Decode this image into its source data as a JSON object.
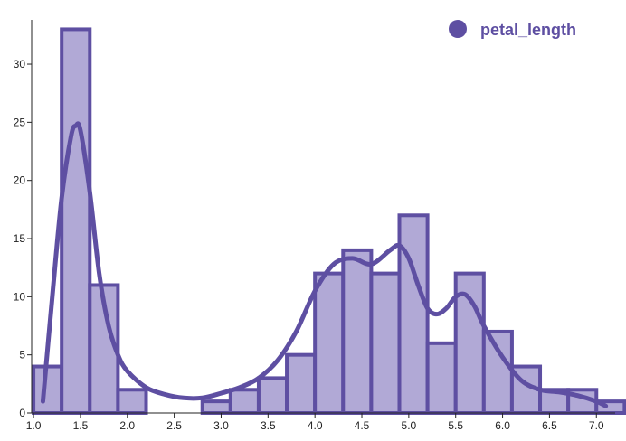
{
  "chart_data": {
    "type": "bar",
    "bin_edges": [
      1.0,
      1.3,
      1.6,
      1.9,
      2.2,
      2.5,
      2.8,
      3.1,
      3.4,
      3.7,
      4.0,
      4.3,
      4.6,
      4.9,
      5.2,
      5.5,
      5.8,
      6.1,
      6.4,
      6.7,
      7.0
    ],
    "counts": [
      4,
      33,
      11,
      2,
      0,
      0,
      1,
      2,
      3,
      5,
      12,
      14,
      12,
      17,
      6,
      12,
      7,
      4,
      2,
      2,
      1
    ],
    "kde_curve": {
      "x": [
        1.1,
        1.2,
        1.3,
        1.4,
        1.45,
        1.5,
        1.6,
        1.7,
        1.8,
        1.9,
        2.0,
        2.2,
        2.4,
        2.6,
        2.8,
        3.0,
        3.2,
        3.4,
        3.6,
        3.8,
        4.0,
        4.2,
        4.4,
        4.6,
        4.8,
        4.9,
        5.0,
        5.1,
        5.2,
        5.3,
        5.4,
        5.5,
        5.6,
        5.7,
        5.8,
        6.0,
        6.2,
        6.4,
        6.6,
        6.8,
        7.0,
        7.1
      ],
      "y": [
        1.0,
        10.0,
        18.5,
        23.8,
        24.7,
        24.3,
        19.0,
        12.0,
        7.5,
        5.0,
        3.6,
        2.2,
        1.6,
        1.3,
        1.3,
        1.7,
        2.2,
        3.0,
        4.5,
        7.0,
        10.5,
        12.8,
        13.3,
        12.8,
        14.0,
        14.4,
        13.3,
        11.0,
        9.0,
        8.5,
        9.0,
        10.0,
        10.2,
        9.2,
        7.5,
        4.8,
        2.8,
        2.0,
        1.8,
        1.5,
        1.0,
        0.6
      ]
    },
    "xlim": [
      0.98,
      7.2
    ],
    "ylim": [
      0,
      33.5
    ],
    "x_ticks": [
      "1.0",
      "1.5",
      "2.0",
      "2.5",
      "3.0",
      "3.5",
      "4.0",
      "4.5",
      "5.0",
      "5.5",
      "6.0",
      "6.5",
      "7.0"
    ],
    "y_ticks": [
      "0",
      "5",
      "10",
      "15",
      "20",
      "25",
      "30"
    ],
    "legend": {
      "label": "petal_length",
      "position": "top-right"
    },
    "color": "#5e4fa2",
    "fill_color": "#b1a9d6",
    "grid": false
  }
}
